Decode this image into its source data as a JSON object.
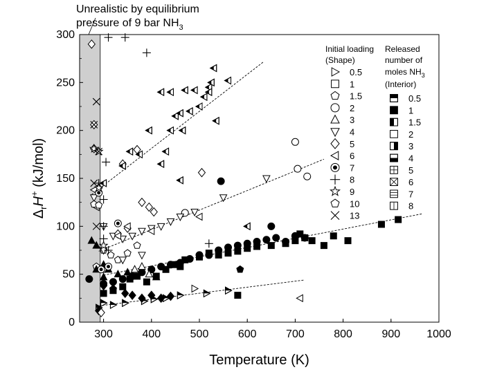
{
  "chart_data": {
    "type": "scatter",
    "title": "",
    "xlabel": "Temperature (K)",
    "ylabel": "ΔrH+ (kJ/mol)",
    "xlim": [
      250,
      1000
    ],
    "ylim": [
      0,
      300
    ],
    "xticks": [
      300,
      400,
      500,
      600,
      700,
      800,
      900,
      1000
    ],
    "yticks": [
      0,
      50,
      100,
      150,
      200,
      250,
      300
    ],
    "shaded_region": {
      "x": [
        250,
        293
      ],
      "label_line1": "Unrealistic by equilibrium",
      "label_line2_prefix": "pressure of 9 bar NH",
      "label_line2_sub": "3"
    },
    "legend_shape": {
      "header1": "Initial loading",
      "header2": "(Shape)",
      "entries": [
        {
          "label": "0.5",
          "marker": "triangle-right"
        },
        {
          "label": "1",
          "marker": "square"
        },
        {
          "label": "1.5",
          "marker": "pentagon"
        },
        {
          "label": "2",
          "marker": "circle"
        },
        {
          "label": "3",
          "marker": "triangle-up"
        },
        {
          "label": "4",
          "marker": "triangle-down"
        },
        {
          "label": "5",
          "marker": "diamond"
        },
        {
          "label": "6",
          "marker": "triangle-left"
        },
        {
          "label": "7",
          "marker": "circle-dot"
        },
        {
          "label": "8",
          "marker": "plus"
        },
        {
          "label": "9",
          "marker": "star"
        },
        {
          "label": "10",
          "marker": "pentagon-open"
        },
        {
          "label": "13",
          "marker": "x"
        }
      ]
    },
    "legend_fill": {
      "header1": "Released",
      "header2": "number of",
      "header3_prefix": "moles NH",
      "header3_sub": "3",
      "header4": "(Interior)",
      "entries": [
        {
          "label": "0.5",
          "fill": "top-half"
        },
        {
          "label": "1",
          "fill": "full"
        },
        {
          "label": "1.5",
          "fill": "left-half"
        },
        {
          "label": "2",
          "fill": "none"
        },
        {
          "label": "3",
          "fill": "right-half"
        },
        {
          "label": "4",
          "fill": "bottom-half"
        },
        {
          "label": "5",
          "fill": "grid"
        },
        {
          "label": "6",
          "fill": "cross"
        },
        {
          "label": "7",
          "fill": "hlines"
        },
        {
          "label": "8",
          "fill": "vline"
        }
      ]
    },
    "trend_lines": [
      {
        "name": "loading-6",
        "x": [
          275,
          635
        ],
        "y": [
          133,
          272
        ]
      },
      {
        "name": "loading-4-5",
        "x": [
          290,
          760
        ],
        "y": [
          74,
          170
        ]
      },
      {
        "name": "loading-1-2",
        "x": [
          300,
          965
        ],
        "y": [
          49,
          113
        ]
      },
      {
        "name": "loading-0.5",
        "x": [
          290,
          720
        ],
        "y": [
          17,
          44
        ]
      }
    ],
    "series": [
      {
        "name": "0.5 (shape)",
        "marker": "triangle-right",
        "points": [
          [
            290,
            15,
            "top-half"
          ],
          [
            320,
            18,
            "top-half"
          ],
          [
            345,
            20,
            "top-half"
          ],
          [
            385,
            22,
            "top-half"
          ],
          [
            405,
            24,
            "top-half"
          ],
          [
            430,
            25,
            "top-half"
          ],
          [
            460,
            28,
            "top-half"
          ],
          [
            490,
            35,
            "none"
          ],
          [
            515,
            30,
            "top-half"
          ],
          [
            560,
            33,
            "top-half"
          ],
          [
            300,
            20,
            "top-half"
          ]
        ]
      },
      {
        "name": "1 (shape)",
        "marker": "square",
        "points": [
          [
            300,
            30,
            "full"
          ],
          [
            320,
            33,
            "full"
          ],
          [
            340,
            37,
            "full"
          ],
          [
            355,
            45,
            "full"
          ],
          [
            370,
            48,
            "full"
          ],
          [
            390,
            42,
            "full"
          ],
          [
            410,
            48,
            "full"
          ],
          [
            430,
            55,
            "full"
          ],
          [
            450,
            60,
            "full"
          ],
          [
            470,
            65,
            "full"
          ],
          [
            500,
            68,
            "full"
          ],
          [
            520,
            72,
            "full"
          ],
          [
            540,
            70,
            "full"
          ],
          [
            560,
            72,
            "full"
          ],
          [
            580,
            74,
            "full"
          ],
          [
            600,
            77,
            "full"
          ],
          [
            620,
            79,
            "full"
          ],
          [
            650,
            80,
            "full"
          ],
          [
            680,
            82,
            "full"
          ],
          [
            700,
            85,
            "full"
          ],
          [
            710,
            92,
            "full"
          ],
          [
            720,
            88,
            "full"
          ],
          [
            735,
            85,
            "full"
          ],
          [
            760,
            80,
            "full"
          ],
          [
            780,
            90,
            "full"
          ],
          [
            810,
            85,
            "full"
          ],
          [
            880,
            102,
            "full"
          ],
          [
            915,
            107,
            "full"
          ],
          [
            580,
            28,
            "full"
          ],
          [
            460,
            58,
            "full"
          ]
        ]
      },
      {
        "name": "1.5 (shape)",
        "marker": "pentagon",
        "points": [
          [
            285,
            58,
            "none"
          ],
          [
            300,
            75,
            "none"
          ],
          [
            315,
            70,
            "none"
          ],
          [
            330,
            65,
            "none"
          ],
          [
            350,
            72,
            "none"
          ],
          [
            370,
            80,
            "none"
          ],
          [
            300,
            55,
            "none"
          ],
          [
            585,
            55,
            "full"
          ]
        ]
      },
      {
        "name": "2 (shape)",
        "marker": "circle",
        "points": [
          [
            270,
            45,
            "full"
          ],
          [
            300,
            40,
            "full"
          ],
          [
            320,
            42,
            "full"
          ],
          [
            340,
            45,
            "full"
          ],
          [
            360,
            48,
            "full"
          ],
          [
            380,
            52,
            "full"
          ],
          [
            400,
            55,
            "full"
          ],
          [
            420,
            58,
            "full"
          ],
          [
            440,
            60,
            "full"
          ],
          [
            460,
            62,
            "full"
          ],
          [
            480,
            66,
            "full"
          ],
          [
            500,
            70,
            "full"
          ],
          [
            520,
            70,
            "full"
          ],
          [
            540,
            75,
            "full"
          ],
          [
            560,
            78,
            "full"
          ],
          [
            580,
            80,
            "full"
          ],
          [
            600,
            82,
            "full"
          ],
          [
            620,
            84,
            "full"
          ],
          [
            640,
            86,
            "full"
          ],
          [
            660,
            88,
            "full"
          ],
          [
            680,
            84,
            "full"
          ],
          [
            700,
            90,
            "full"
          ],
          [
            720,
            88,
            "full"
          ],
          [
            545,
            147,
            "full"
          ],
          [
            650,
            100,
            "full"
          ],
          [
            700,
            188,
            "none"
          ],
          [
            705,
            160,
            "none"
          ],
          [
            725,
            152,
            "none"
          ],
          [
            470,
            114,
            "none"
          ]
        ]
      },
      {
        "name": "3 (shape)",
        "marker": "triangle-up",
        "points": [
          [
            275,
            85,
            "full"
          ],
          [
            285,
            80,
            "full"
          ],
          [
            300,
            60,
            "full"
          ],
          [
            310,
            55,
            "full"
          ],
          [
            330,
            50,
            "full"
          ],
          [
            350,
            52,
            "full"
          ],
          [
            365,
            55,
            "none"
          ],
          [
            380,
            58,
            "none"
          ],
          [
            395,
            50,
            "none"
          ],
          [
            410,
            47,
            "full"
          ],
          [
            285,
            55,
            "full"
          ],
          [
            300,
            47,
            "full"
          ]
        ]
      },
      {
        "name": "4 (shape)",
        "marker": "triangle-down",
        "points": [
          [
            280,
            130,
            "none"
          ],
          [
            300,
            100,
            "none"
          ],
          [
            320,
            90,
            "none"
          ],
          [
            340,
            87,
            "none"
          ],
          [
            360,
            90,
            "none"
          ],
          [
            380,
            95,
            "none"
          ],
          [
            400,
            98,
            "none"
          ],
          [
            420,
            100,
            "none"
          ],
          [
            440,
            105,
            "none"
          ],
          [
            460,
            110,
            "none"
          ],
          [
            490,
            115,
            "none"
          ],
          [
            550,
            130,
            "none"
          ],
          [
            640,
            150,
            "none"
          ],
          [
            300,
            75,
            "none"
          ],
          [
            340,
            65,
            "none"
          ],
          [
            380,
            70,
            "none"
          ]
        ]
      },
      {
        "name": "5 (shape)",
        "marker": "diamond",
        "points": [
          [
            275,
            290,
            "none"
          ],
          [
            290,
            140,
            "none"
          ],
          [
            340,
            165,
            "none"
          ],
          [
            370,
            180,
            "none"
          ],
          [
            380,
            125,
            "none"
          ],
          [
            395,
            120,
            "none"
          ],
          [
            405,
            115,
            "none"
          ],
          [
            350,
            98,
            "none"
          ],
          [
            330,
            92,
            "none"
          ],
          [
            300,
            38,
            "full"
          ],
          [
            320,
            35,
            "full"
          ],
          [
            345,
            30,
            "full"
          ],
          [
            360,
            28,
            "full"
          ],
          [
            380,
            25,
            "full"
          ],
          [
            400,
            28,
            "full"
          ],
          [
            420,
            25,
            "full"
          ],
          [
            440,
            27,
            "full"
          ],
          [
            505,
            156,
            "none"
          ],
          [
            280,
            206,
            "none"
          ],
          [
            280,
            181,
            "none"
          ],
          [
            290,
            12,
            "full"
          ],
          [
            295,
            10,
            "none"
          ]
        ]
      },
      {
        "name": "6 (shape)",
        "marker": "triangle-left",
        "points": [
          [
            280,
            138,
            "none"
          ],
          [
            285,
            120,
            "none"
          ],
          [
            300,
            145,
            "left-half"
          ],
          [
            340,
            163,
            "left-half"
          ],
          [
            355,
            178,
            "left-half"
          ],
          [
            375,
            175,
            "left-half"
          ],
          [
            395,
            200,
            "left-half"
          ],
          [
            420,
            165,
            "left-half"
          ],
          [
            430,
            178,
            "left-half"
          ],
          [
            440,
            200,
            "left-half"
          ],
          [
            450,
            215,
            "left-half"
          ],
          [
            460,
            218,
            "left-half"
          ],
          [
            465,
            200,
            "left-half"
          ],
          [
            480,
            220,
            "left-half"
          ],
          [
            500,
            225,
            "left-half"
          ],
          [
            510,
            235,
            "left-half"
          ],
          [
            520,
            245,
            "left-half"
          ],
          [
            525,
            250,
            "left-half"
          ],
          [
            530,
            265,
            "left-half"
          ],
          [
            535,
            210,
            "left-half"
          ],
          [
            560,
            252,
            "left-half"
          ],
          [
            420,
            240,
            "left-half"
          ],
          [
            440,
            240,
            "left-half"
          ],
          [
            470,
            242,
            "left-half"
          ],
          [
            490,
            242,
            "left-half"
          ],
          [
            520,
            240,
            "left-half"
          ],
          [
            600,
            100,
            "left-half"
          ],
          [
            500,
            110,
            "none"
          ],
          [
            330,
            90,
            "none"
          ],
          [
            350,
            100,
            "none"
          ],
          [
            400,
            95,
            "none"
          ],
          [
            460,
            148,
            "left-half"
          ],
          [
            710,
            25,
            "none"
          ]
        ]
      },
      {
        "name": "7 (shape)",
        "marker": "circle-dot",
        "points": [
          [
            290,
            135,
            "none"
          ],
          [
            330,
            103,
            "none"
          ],
          [
            310,
            58,
            "none"
          ],
          [
            295,
            55,
            "none"
          ]
        ]
      },
      {
        "name": "8 (shape)",
        "marker": "plus",
        "points": [
          [
            310,
            297,
            "none"
          ],
          [
            345,
            297,
            "none"
          ],
          [
            390,
            281,
            "none"
          ],
          [
            305,
            167,
            "none"
          ],
          [
            290,
            145,
            "none"
          ],
          [
            300,
            128,
            "none"
          ],
          [
            300,
            100,
            "none"
          ],
          [
            310,
            75,
            "none"
          ],
          [
            520,
            82,
            "none"
          ],
          [
            300,
            87,
            "none"
          ]
        ]
      },
      {
        "name": "9 (shape)",
        "marker": "star",
        "points": [
          [
            280,
            181,
            "none"
          ],
          [
            290,
            178,
            "none"
          ],
          [
            290,
            140,
            "none"
          ],
          [
            300,
            80,
            "none"
          ]
        ]
      },
      {
        "name": "10 (shape)",
        "marker": "pentagon-open",
        "points": [
          [
            280,
            123,
            "none"
          ],
          [
            290,
            122,
            "none"
          ]
        ]
      },
      {
        "name": "13 (shape)",
        "marker": "x",
        "points": [
          [
            285,
            230,
            "none"
          ],
          [
            280,
            206,
            "none"
          ],
          [
            290,
            178,
            "none"
          ],
          [
            280,
            145,
            "none"
          ],
          [
            285,
            100,
            "none"
          ]
        ]
      }
    ]
  }
}
